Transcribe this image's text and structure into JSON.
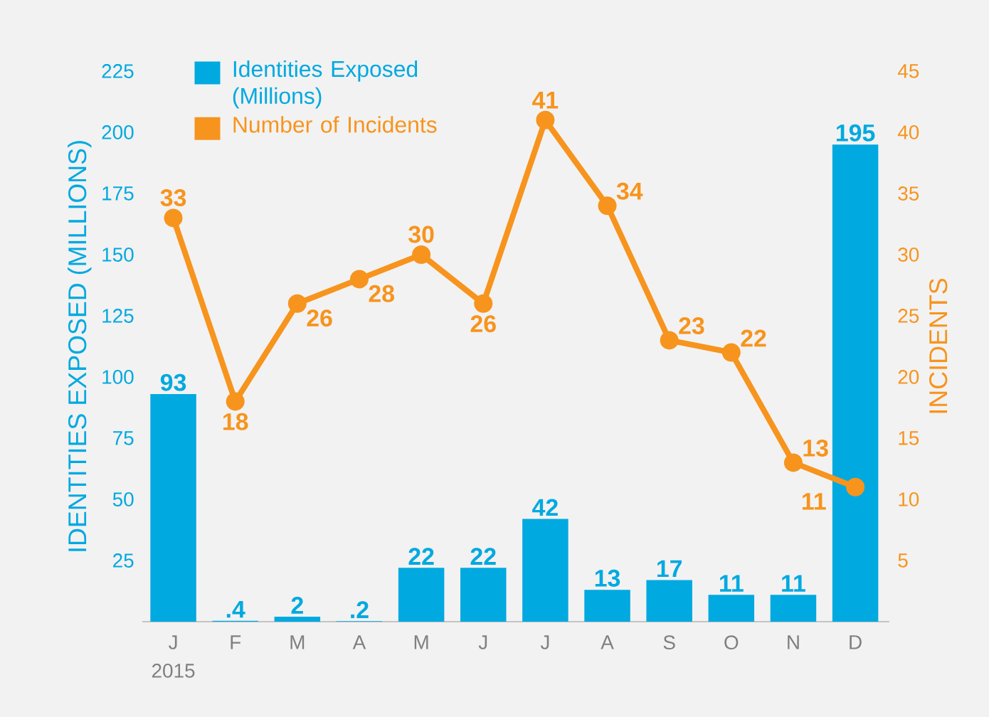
{
  "chart_data": {
    "type": "bar",
    "categories": [
      "J",
      "F",
      "M",
      "A",
      "M",
      "J",
      "J",
      "A",
      "S",
      "O",
      "N",
      "D"
    ],
    "ylabel": "IDENTITIES EXPOSED (MILLIONS)",
    "y2label": "INCIDENTS",
    "ylim": [
      0,
      225
    ],
    "yticks": [
      25,
      50,
      75,
      100,
      125,
      150,
      175,
      200,
      225
    ],
    "y2lim": [
      0,
      45
    ],
    "y2ticks": [
      5,
      10,
      15,
      20,
      25,
      30,
      35,
      40,
      45
    ],
    "series": [
      {
        "name": "Identities Exposed (Millions)",
        "color": "#00a9e0",
        "values": [
          93,
          0.4,
          2,
          0.2,
          22,
          22,
          42,
          13,
          17,
          11,
          11,
          195
        ],
        "value_labels": [
          "93",
          ".4",
          "2",
          ".2",
          "22",
          "22",
          "42",
          "13",
          "17",
          "11",
          "11",
          "195"
        ]
      },
      {
        "name": "Number of Incidents",
        "type": "line",
        "axis": "y2",
        "color": "#f7941d",
        "values": [
          33,
          18,
          26,
          28,
          30,
          26,
          41,
          34,
          23,
          22,
          13,
          11
        ],
        "value_labels": [
          "33",
          "18",
          "26",
          "28",
          "30",
          "26",
          "41",
          "34",
          "23",
          "22",
          "13",
          "11"
        ]
      }
    ],
    "legend": "top left",
    "marker": "circle",
    "line_style": "solid",
    "annotations": [
      "2015"
    ]
  }
}
